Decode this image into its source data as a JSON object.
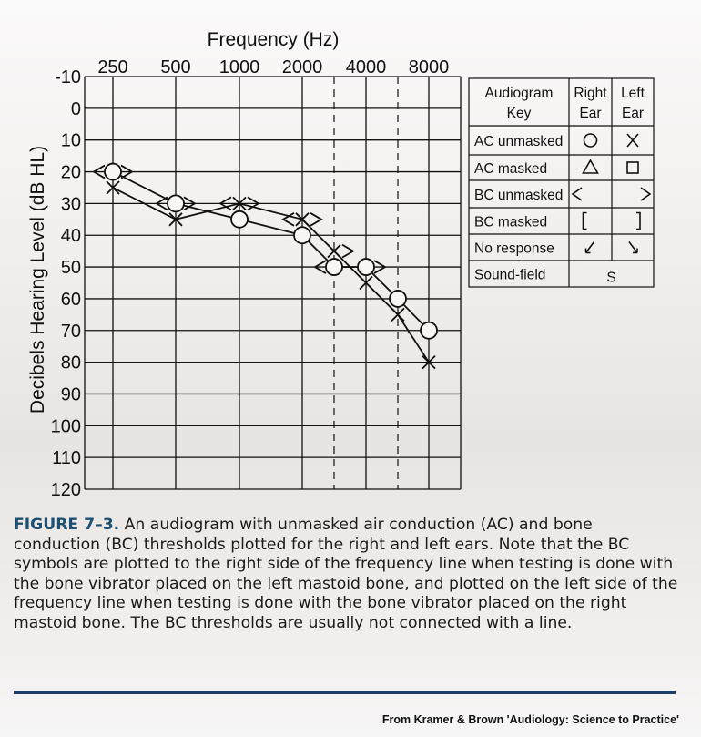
{
  "chart_data": {
    "type": "scatter",
    "title": "",
    "xlabel": "Frequency (Hz)",
    "ylabel": "Decibels Hearing Level (dB HL)",
    "x_ticks": [
      "250",
      "500",
      "1000",
      "2000",
      "4000",
      "8000"
    ],
    "interoctave_ticks": [
      "3000",
      "6000"
    ],
    "y_ticks": [
      "-10",
      "0",
      "10",
      "20",
      "30",
      "40",
      "50",
      "60",
      "70",
      "80",
      "90",
      "100",
      "110",
      "120"
    ],
    "ylim": [
      -10,
      120
    ],
    "y_inverted": true,
    "grid": true,
    "series": [
      {
        "name": "AC unmasked Right Ear",
        "symbol": "O",
        "connected": true,
        "points": [
          {
            "x": 250,
            "y": 20
          },
          {
            "x": 500,
            "y": 30
          },
          {
            "x": 1000,
            "y": 35
          },
          {
            "x": 2000,
            "y": 40
          },
          {
            "x": 3000,
            "y": 50
          },
          {
            "x": 4000,
            "y": 50
          },
          {
            "x": 6000,
            "y": 60
          },
          {
            "x": 8000,
            "y": 70
          }
        ]
      },
      {
        "name": "AC unmasked Left Ear",
        "symbol": "X",
        "connected": true,
        "points": [
          {
            "x": 250,
            "y": 25
          },
          {
            "x": 500,
            "y": 35
          },
          {
            "x": 1000,
            "y": 30
          },
          {
            "x": 2000,
            "y": 35
          },
          {
            "x": 3000,
            "y": 45
          },
          {
            "x": 4000,
            "y": 55
          },
          {
            "x": 6000,
            "y": 65
          },
          {
            "x": 8000,
            "y": 80
          }
        ]
      },
      {
        "name": "BC unmasked Right Ear",
        "symbol": "<",
        "connected": false,
        "points": [
          {
            "x": 250,
            "y": 20
          },
          {
            "x": 500,
            "y": 30
          },
          {
            "x": 1000,
            "y": 30
          },
          {
            "x": 2000,
            "y": 35
          },
          {
            "x": 3000,
            "y": 50
          }
        ]
      },
      {
        "name": "BC unmasked Left Ear",
        "symbol": ">",
        "connected": false,
        "points": [
          {
            "x": 250,
            "y": 20
          },
          {
            "x": 500,
            "y": 30
          },
          {
            "x": 1000,
            "y": 30
          },
          {
            "x": 2000,
            "y": 35
          },
          {
            "x": 3000,
            "y": 45
          },
          {
            "x": 4000,
            "y": 50
          }
        ]
      }
    ],
    "legend": {
      "placement": "right",
      "header": [
        "Audiogram Key",
        "Right Ear",
        "Left Ear"
      ],
      "rows": [
        {
          "label": "AC unmasked",
          "right": "circle",
          "left": "x"
        },
        {
          "label": "AC masked",
          "right": "triangle",
          "left": "square"
        },
        {
          "label": "BC unmasked",
          "right": "<",
          "left": ">"
        },
        {
          "label": "BC masked",
          "right": "[",
          "left": "]"
        },
        {
          "label": "No response",
          "right": "arrow-down-left",
          "left": "arrow-down-right"
        },
        {
          "label": "Sound-field",
          "both": "S"
        }
      ]
    }
  },
  "caption": {
    "label": "FIGURE 7–3.",
    "text": "An audiogram with unmasked air conduction (AC) and bone conduction (BC) thresholds plotted for the right and left ears. Note that the BC symbols are plotted to the right side of the frequency line when testing is done with the bone vibrator placed on the left mastoid bone, and plotted on the left side of the frequency line when testing is done with the bone vibrator placed on the right mastoid bone. The BC thresholds are usually not connected with a line."
  },
  "source": "From Kramer & Brown 'Audiology: Science to Practice'",
  "colors": {
    "ink": "#111111",
    "caption_label": "#1d4f73",
    "rule": "#1b3e66"
  }
}
